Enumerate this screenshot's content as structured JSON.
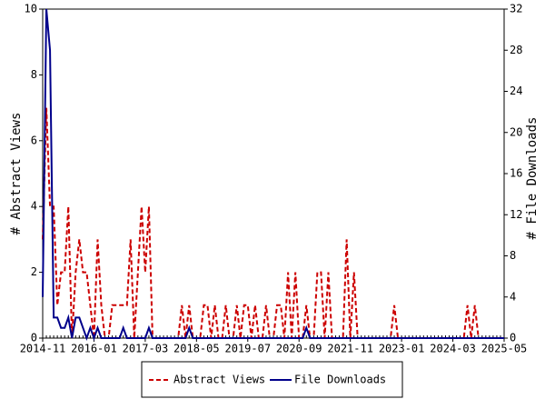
{
  "chart_data": {
    "type": "line",
    "x": [
      "2014-11",
      "2014-12",
      "2015-01",
      "2015-02",
      "2015-03",
      "2015-04",
      "2015-05",
      "2015-06",
      "2015-07",
      "2015-08",
      "2015-09",
      "2015-10",
      "2015-11",
      "2015-12",
      "2016-01",
      "2016-02",
      "2016-03",
      "2016-04",
      "2016-05",
      "2016-06",
      "2016-07",
      "2016-08",
      "2016-09",
      "2016-10",
      "2016-11",
      "2016-12",
      "2017-01",
      "2017-02",
      "2017-03",
      "2017-04",
      "2017-05",
      "2017-06",
      "2017-07",
      "2017-08",
      "2017-09",
      "2017-10",
      "2017-11",
      "2017-12",
      "2018-01",
      "2018-02",
      "2018-03",
      "2018-04",
      "2018-05",
      "2018-06",
      "2018-07",
      "2018-08",
      "2018-09",
      "2018-10",
      "2018-11",
      "2018-12",
      "2019-01",
      "2019-02",
      "2019-03",
      "2019-04",
      "2019-05",
      "2019-06",
      "2019-07",
      "2019-08",
      "2019-09",
      "2019-10",
      "2019-11",
      "2019-12",
      "2020-01",
      "2020-02",
      "2020-03",
      "2020-04",
      "2020-05",
      "2020-06",
      "2020-07",
      "2020-08",
      "2020-09",
      "2020-10",
      "2020-11",
      "2020-12",
      "2021-01",
      "2021-02",
      "2021-03",
      "2021-04",
      "2021-05",
      "2021-06",
      "2021-07",
      "2021-08",
      "2021-09",
      "2021-10",
      "2021-11",
      "2021-12",
      "2022-01",
      "2022-02",
      "2022-03",
      "2022-04",
      "2022-05",
      "2022-06",
      "2022-07",
      "2022-08",
      "2022-09",
      "2022-10",
      "2022-11",
      "2022-12",
      "2023-01",
      "2023-02",
      "2023-03",
      "2023-04",
      "2023-05",
      "2023-06",
      "2023-07",
      "2023-08",
      "2023-09",
      "2023-10",
      "2023-11",
      "2023-12",
      "2024-01",
      "2024-02",
      "2024-03",
      "2024-04",
      "2024-05",
      "2024-06",
      "2024-07",
      "2024-08",
      "2024-09",
      "2024-10",
      "2024-11",
      "2024-12",
      "2025-01",
      "2025-02",
      "2025-03",
      "2025-04",
      "2025-05"
    ],
    "xticks": [
      "2014-11",
      "2016-01",
      "2017-03",
      "2018-05",
      "2019-07",
      "2020-09",
      "2021-11",
      "2023-01",
      "2024-03",
      "2025-05"
    ],
    "ylabel": "# Abstract Views",
    "y2label": "# File Downloads",
    "ylim": [
      0,
      10
    ],
    "yticks": [
      0,
      2,
      4,
      6,
      8,
      10
    ],
    "y2lim": [
      0,
      32
    ],
    "y2ticks": [
      0,
      4,
      8,
      12,
      16,
      20,
      24,
      28,
      32
    ],
    "legend": "bottom",
    "series": [
      {
        "name": "Abstract Views",
        "color": "#cc0000",
        "dashed": true,
        "values": [
          3,
          7,
          4,
          4,
          1,
          2,
          2,
          4,
          0,
          2,
          3,
          2,
          2,
          1,
          0,
          3,
          1,
          0,
          0,
          1,
          1,
          1,
          1,
          1,
          3,
          0,
          2,
          4,
          2,
          4,
          0,
          0,
          0,
          0,
          0,
          0,
          0,
          0,
          1,
          0,
          1,
          0,
          0,
          0,
          1,
          1,
          0,
          1,
          0,
          0,
          1,
          0,
          0,
          1,
          0,
          1,
          1,
          0,
          1,
          0,
          0,
          1,
          0,
          0,
          1,
          1,
          0,
          2,
          0,
          2,
          0,
          0,
          1,
          0,
          0,
          2,
          2,
          0,
          2,
          0,
          0,
          0,
          0,
          3,
          0,
          2,
          0,
          0,
          0,
          0,
          0,
          0,
          0,
          0,
          0,
          0,
          1,
          0,
          0,
          0,
          0,
          0,
          0,
          0,
          0,
          0,
          0,
          0,
          0,
          0,
          0,
          0,
          0,
          0,
          0,
          0,
          1,
          0,
          1,
          0,
          0,
          0,
          0,
          0,
          0,
          0,
          0
        ]
      },
      {
        "name": "File Downloads",
        "color": "#00008b",
        "dashed": false,
        "axis": "y2",
        "values": [
          4,
          32,
          28,
          2,
          2,
          1,
          1,
          2,
          0,
          2,
          2,
          1,
          0,
          1,
          0,
          1,
          0,
          0,
          0,
          0,
          0,
          0,
          1,
          0,
          0,
          0,
          0,
          0,
          0,
          1,
          0,
          0,
          0,
          0,
          0,
          0,
          0,
          0,
          0,
          0,
          1,
          0,
          0,
          0,
          0,
          0,
          0,
          0,
          0,
          0,
          0,
          0,
          0,
          0,
          0,
          0,
          0,
          0,
          0,
          0,
          0,
          0,
          0,
          0,
          0,
          0,
          0,
          0,
          0,
          0,
          0,
          0,
          1,
          0,
          0,
          0,
          0,
          0,
          0,
          0,
          0,
          0,
          0,
          0,
          0,
          0,
          0,
          0,
          0,
          0,
          0,
          0,
          0,
          0,
          0,
          0,
          0,
          0,
          0,
          0,
          0,
          0,
          0,
          0,
          0,
          0,
          0,
          0,
          0,
          0,
          0,
          0,
          0,
          0,
          0,
          0,
          0,
          0,
          0,
          0,
          0,
          0,
          0,
          0,
          0,
          0,
          0
        ]
      }
    ]
  }
}
